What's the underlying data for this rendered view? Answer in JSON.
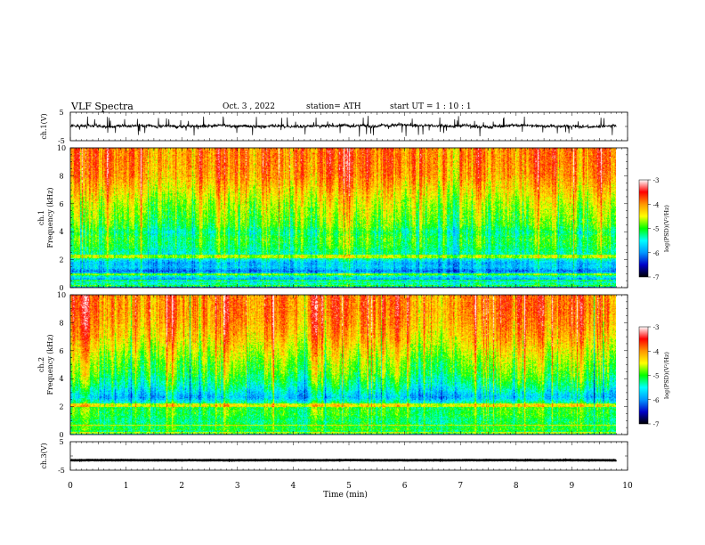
{
  "header": {
    "title": "VLF  Spectra",
    "date": "Oct. 3  , 2022",
    "station": "station= ATH",
    "start_ut": "start  UT  =    1  : 10 : 1"
  },
  "chart_data": [
    {
      "type": "line",
      "panel": "ch1-waveform",
      "ylabel": "ch.1(V)",
      "ylim": [
        -5,
        5
      ],
      "y_ticks": [
        "5",
        "-5"
      ],
      "xlim": [
        0,
        10
      ],
      "series": [
        {
          "x_range": [
            0,
            9.8
          ],
          "baseline_v": 0.2,
          "noise_v": 1.5,
          "spike_v": 3.5,
          "color": "#000000"
        }
      ]
    },
    {
      "type": "heatmap",
      "panel": "ch1-spectrogram",
      "ylabel": "ch.1\nFrequency (kHz)",
      "ylim": [
        0,
        10
      ],
      "y_ticks": [
        "0",
        "2",
        "4",
        "6",
        "8",
        "10"
      ],
      "xlim": [
        0,
        10
      ],
      "data_x_range": [
        0,
        9.8
      ],
      "z_label": "log(PSD)(V²/Hz)",
      "z_range": [
        -7,
        -3
      ],
      "z_ticks": [
        "-3",
        "-4",
        "-5",
        "-6",
        "-7"
      ],
      "colormap": [
        "#000000",
        "#0000c8",
        "#0096ff",
        "#00ffff",
        "#00ff00",
        "#ffff00",
        "#ff9600",
        "#ff0000",
        "#ffffff"
      ],
      "freq_profile_logpsd": [
        [
          0.0,
          -6.4
        ],
        [
          0.3,
          -5.2
        ],
        [
          0.6,
          -6.0
        ],
        [
          0.9,
          -5.3
        ],
        [
          1.2,
          -6.1
        ],
        [
          1.5,
          -5.7
        ],
        [
          1.8,
          -5.8
        ],
        [
          2.1,
          -5.4
        ],
        [
          2.5,
          -5.3
        ],
        [
          3.0,
          -5.1
        ],
        [
          3.5,
          -5.0
        ],
        [
          4.0,
          -5.2
        ],
        [
          4.5,
          -4.9
        ],
        [
          5.0,
          -4.8
        ],
        [
          6.0,
          -4.6
        ],
        [
          7.0,
          -4.3
        ],
        [
          8.0,
          -4.0
        ],
        [
          9.0,
          -3.9
        ],
        [
          10.0,
          -3.9
        ]
      ],
      "horizontal_lines_khz": [
        0.15,
        0.55,
        1.0,
        2.2,
        2.35
      ]
    },
    {
      "type": "heatmap",
      "panel": "ch2-spectrogram",
      "ylabel": "ch.2\nFrequency (kHz)",
      "ylim": [
        0,
        10
      ],
      "y_ticks": [
        "0",
        "2",
        "4",
        "6",
        "8",
        "10"
      ],
      "xlim": [
        0,
        10
      ],
      "data_x_range": [
        0,
        9.8
      ],
      "z_label": "log(PSD)(V²/Hz)",
      "z_range": [
        -7,
        -3
      ],
      "z_ticks": [
        "-3",
        "-4",
        "-5",
        "-6",
        "-7"
      ],
      "colormap": [
        "#000000",
        "#0000c8",
        "#0096ff",
        "#00ffff",
        "#00ff00",
        "#ffff00",
        "#ff9600",
        "#ff0000",
        "#ffffff"
      ],
      "freq_profile_logpsd": [
        [
          0.0,
          -5.6
        ],
        [
          0.4,
          -5.0
        ],
        [
          1.0,
          -5.2
        ],
        [
          1.5,
          -5.0
        ],
        [
          2.0,
          -5.0
        ],
        [
          2.3,
          -5.3
        ],
        [
          2.7,
          -5.8
        ],
        [
          3.0,
          -5.6
        ],
        [
          3.5,
          -5.3
        ],
        [
          4.0,
          -5.1
        ],
        [
          4.5,
          -4.9
        ],
        [
          5.0,
          -4.8
        ],
        [
          6.0,
          -4.5
        ],
        [
          7.0,
          -4.2
        ],
        [
          8.0,
          -4.0
        ],
        [
          9.0,
          -3.9
        ],
        [
          10.0,
          -3.9
        ]
      ],
      "horizontal_lines_khz": [
        0.15,
        0.7,
        2.05,
        2.2
      ]
    },
    {
      "type": "line",
      "panel": "ch3-waveform",
      "ylabel": "ch.3(V)",
      "ylim": [
        -5,
        5
      ],
      "y_ticks": [
        "5",
        "-5"
      ],
      "xlim": [
        0,
        10
      ],
      "xlabel": "Time  (min)",
      "x_ticks": [
        "0",
        "1",
        "2",
        "3",
        "4",
        "5",
        "6",
        "7",
        "8",
        "9",
        "10"
      ],
      "series": [
        {
          "x_range": [
            0,
            9.8
          ],
          "baseline_v": -1.5,
          "noise_v": 0.15,
          "color": "#000000"
        }
      ]
    }
  ]
}
